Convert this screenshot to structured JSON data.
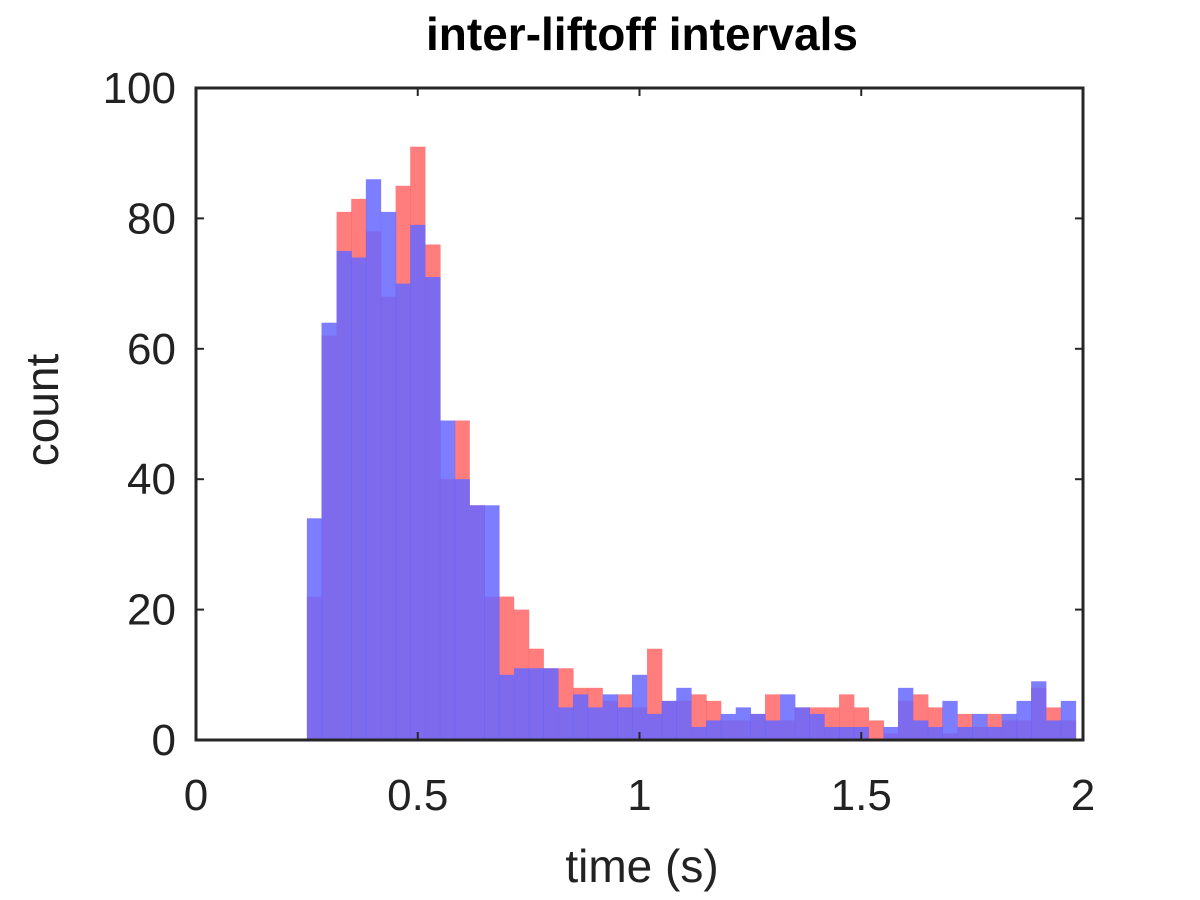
{
  "chart_data": {
    "type": "bar",
    "title": "inter-liftoff intervals",
    "xlabel": "time (s)",
    "ylabel": "count",
    "xlim": [
      0,
      2
    ],
    "ylim": [
      0,
      100
    ],
    "x_ticks": [
      "0",
      "0.5",
      "1",
      "1.5",
      "2"
    ],
    "y_ticks": [
      "0",
      "20",
      "40",
      "60",
      "80",
      "100"
    ],
    "grid": false,
    "legend": "none",
    "bin_width": 0.0333,
    "x": [
      0.25,
      0.283,
      0.317,
      0.35,
      0.383,
      0.417,
      0.45,
      0.483,
      0.517,
      0.55,
      0.583,
      0.617,
      0.65,
      0.683,
      0.717,
      0.75,
      0.783,
      0.817,
      0.85,
      0.883,
      0.917,
      0.95,
      0.983,
      1.017,
      1.05,
      1.083,
      1.117,
      1.15,
      1.183,
      1.217,
      1.25,
      1.283,
      1.317,
      1.35,
      1.383,
      1.417,
      1.45,
      1.483,
      1.517,
      1.55,
      1.583,
      1.617,
      1.65,
      1.683,
      1.717,
      1.75,
      1.783,
      1.817,
      1.85,
      1.883,
      1.917,
      1.95
    ],
    "series": [
      {
        "color": "#ff6666",
        "values": [
          22,
          62,
          81,
          83,
          78,
          68,
          85,
          91,
          76,
          40,
          49,
          36,
          22,
          22,
          20,
          14,
          11,
          11,
          8,
          8,
          6,
          7,
          5,
          14,
          6,
          6,
          7,
          6,
          3,
          3,
          4,
          7,
          3,
          5,
          5,
          5,
          7,
          5,
          3,
          1,
          6,
          7,
          5,
          1,
          4,
          2,
          4,
          3,
          3,
          8,
          5,
          3
        ]
      },
      {
        "color": "#6666ff",
        "values": [
          34,
          64,
          75,
          74,
          86,
          81,
          70,
          79,
          71,
          49,
          40,
          36,
          36,
          10,
          11,
          11,
          11,
          5,
          7,
          5,
          7,
          5,
          10,
          4,
          6,
          8,
          2,
          3,
          4,
          5,
          4,
          3,
          7,
          5,
          4,
          2,
          2,
          2,
          0,
          2,
          8,
          3,
          2,
          6,
          2,
          4,
          2,
          4,
          6,
          9,
          3,
          6
        ]
      }
    ]
  }
}
